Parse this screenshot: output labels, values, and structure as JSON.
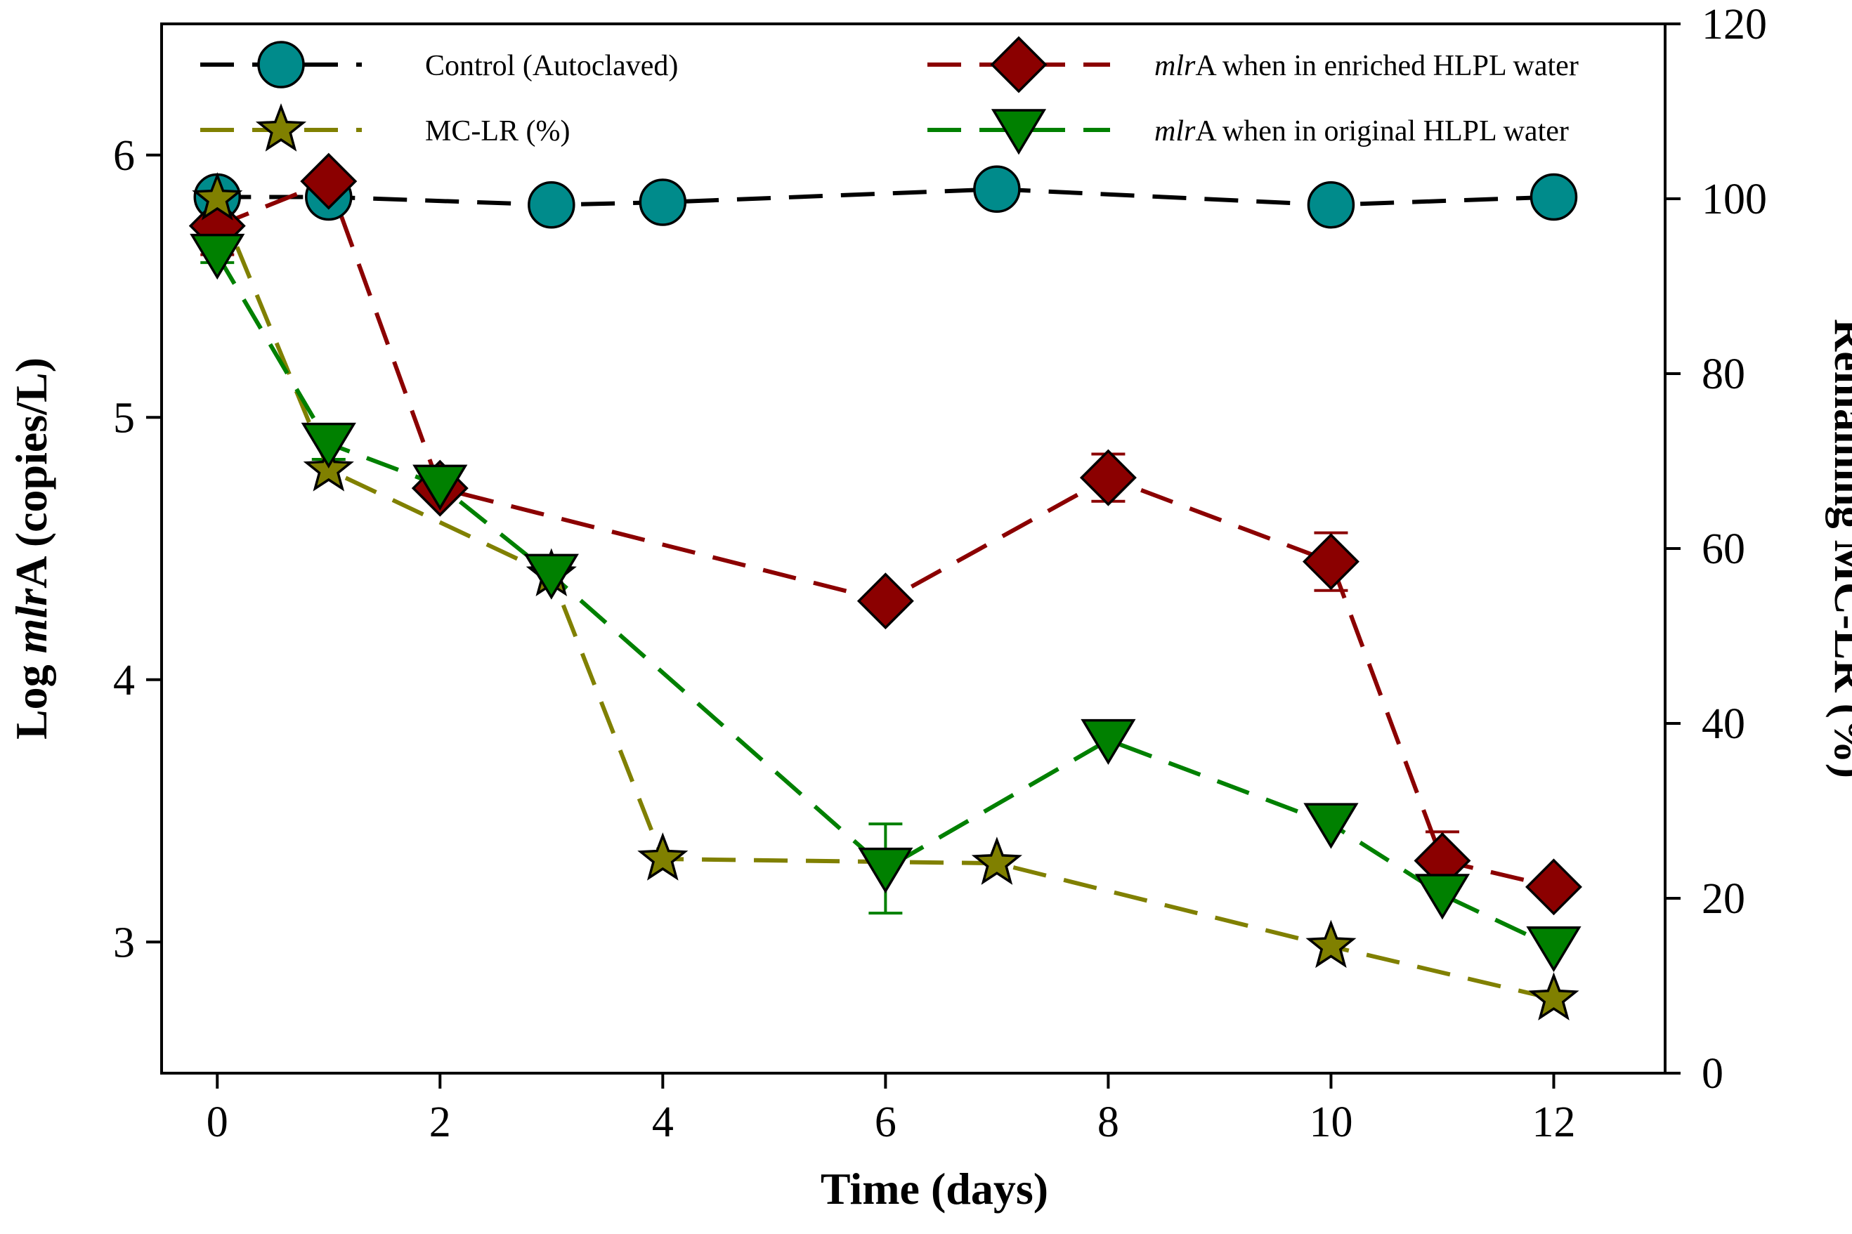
{
  "chart_data": {
    "type": "line",
    "title": "",
    "x": [
      0,
      1,
      2,
      3,
      4,
      6,
      7,
      8,
      10,
      11,
      12
    ],
    "xlabel": "Time (days)",
    "xlim": [
      -0.5,
      13
    ],
    "xticks": [
      0,
      2,
      4,
      6,
      8,
      10,
      12
    ],
    "ylabel_left": {
      "pre": "Log ",
      "italic": "mlr",
      "post": "A (copies/L)"
    },
    "ylim_left": [
      2.5,
      6.5
    ],
    "yticks_left": [
      3,
      4,
      5,
      6
    ],
    "ylabel_right": "Remaining MC-LR (%)",
    "ylim_right": [
      0,
      120
    ],
    "yticks_right": [
      0,
      20,
      40,
      60,
      80,
      100,
      120
    ],
    "grid": false,
    "legend_position": "top",
    "series": [
      {
        "name": "Control (Autoclaved)",
        "legend_italic": "",
        "legend_text": "Control (Autoclaved)",
        "axis": "left",
        "marker": "circle",
        "line_color": "#000000",
        "marker_color": "#008b8b",
        "points": [
          [
            0,
            5.84
          ],
          [
            1,
            5.84
          ],
          [
            3,
            5.81
          ],
          [
            4,
            5.82
          ],
          [
            7,
            5.87
          ],
          [
            10,
            5.81
          ],
          [
            12,
            5.84
          ]
        ],
        "errors": []
      },
      {
        "name": "mlrA when in enriched HLPL water",
        "legend_italic": "mlr",
        "legend_text": "A when in enriched HLPL water",
        "axis": "left",
        "marker": "diamond",
        "line_color": "#8b0000",
        "marker_color": "#8b0000",
        "points": [
          [
            0,
            5.73
          ],
          [
            1,
            5.9
          ],
          [
            2,
            4.73
          ],
          [
            6,
            4.3
          ],
          [
            8,
            4.77
          ],
          [
            10,
            4.45
          ],
          [
            11,
            3.31
          ],
          [
            12,
            3.21
          ]
        ],
        "errors": [
          0.11,
          0,
          0,
          0,
          0.09,
          0.11,
          0.11,
          0
        ]
      },
      {
        "name": "MC-LR (%)",
        "legend_italic": "",
        "legend_text": "MC-LR (%)",
        "axis": "right",
        "marker": "star",
        "line_color": "#808000",
        "marker_color": "#808000",
        "points": [
          [
            0,
            100
          ],
          [
            1,
            69
          ],
          [
            3,
            57
          ],
          [
            4,
            24.5
          ],
          [
            7,
            24
          ],
          [
            10,
            14.5
          ],
          [
            12,
            8.5
          ]
        ],
        "errors": []
      },
      {
        "name": "mlrA when in original HLPL water",
        "legend_italic": "mlr",
        "legend_text": "A when in original HLPL water",
        "axis": "left",
        "marker": "triangle-down",
        "line_color": "#008000",
        "marker_color": "#008000",
        "points": [
          [
            0,
            5.62
          ],
          [
            1,
            4.9
          ],
          [
            2,
            4.74
          ],
          [
            3,
            4.4
          ],
          [
            6,
            3.28
          ],
          [
            8,
            3.77
          ],
          [
            10,
            3.45
          ],
          [
            11,
            3.18
          ],
          [
            12,
            2.98
          ]
        ],
        "errors": [
          0.03,
          0.06,
          0,
          0,
          0.17,
          0,
          0,
          0,
          0
        ]
      }
    ]
  }
}
